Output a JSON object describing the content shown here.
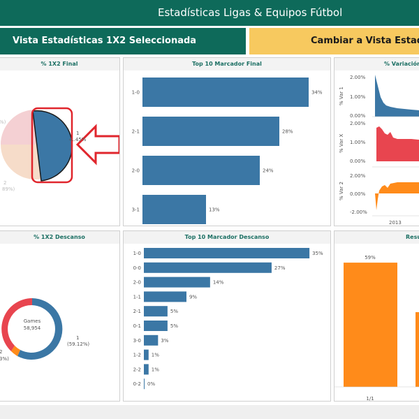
{
  "header": {
    "title": "Estadísticas Ligas & Equipos Fútbol"
  },
  "tabs": {
    "active_label": "Vista Estadísticas 1X2 Seleccionada",
    "switch_label": "Cambiar a Vista Estadísticas"
  },
  "colors": {
    "header_green": "#0e6a5a",
    "switch_yellow": "#f7c95f",
    "bar_blue": "#3b77a5",
    "annotation_red": "#e0262d",
    "red": "#e8454f",
    "orange": "#ff8b1a"
  },
  "panels": {
    "p1x2_final": {
      "title": "% 1X2 Final",
      "label_1": "1",
      "label_1_pct": "4..45%",
      "label_left_pct": "%)",
      "label_2": "2",
      "label_2_pct": "89%)"
    },
    "top10_final": {
      "title": "Top 10 Marcador Final"
    },
    "variacion": {
      "title": "% Variación",
      "axis_year": "2013",
      "row_labels": [
        "% Var 1",
        "% Var X",
        "% Var 2"
      ],
      "ticks_1": [
        "2.00%",
        "1.00%",
        "0.00%"
      ],
      "ticks_x": [
        "2.00%",
        "1.00%",
        "0.00%"
      ],
      "ticks_2": [
        "2.00%",
        "0.00%",
        "-2.00%"
      ]
    },
    "p1x2_descanso": {
      "title": "% 1X2 Descanso",
      "center_label": "Games",
      "center_value": "58,954",
      "label_1": "1",
      "label_1_pct": "(59.12%)",
      "label_2": "2",
      "label_2_pct": "3%)"
    },
    "top10_descanso": {
      "title": "Top 10 Marcador Descanso"
    },
    "resultados": {
      "title": "Resu",
      "bar_label": "59%",
      "axis_label": "1/1"
    }
  },
  "chart_data": [
    {
      "type": "bar",
      "title": "Top 10 Marcador Final",
      "categories": [
        "1-0",
        "2-1",
        "2-0",
        "3-1"
      ],
      "values": [
        34,
        28,
        24,
        13
      ],
      "labels": [
        "34%",
        "28%",
        "24%",
        "13%"
      ],
      "xlim": [
        0,
        40
      ]
    },
    {
      "type": "bar",
      "title": "Top 10 Marcador Descanso",
      "categories": [
        "1-0",
        "0-0",
        "2-0",
        "1-1",
        "2-1",
        "0-1",
        "3-0",
        "1-2",
        "2-2",
        "0-2"
      ],
      "values": [
        35,
        27,
        14,
        9,
        5,
        5,
        3,
        1,
        1,
        0
      ],
      "labels": [
        "35%",
        "27%",
        "14%",
        "9%",
        "5%",
        "5%",
        "3%",
        "1%",
        "1%",
        "0%"
      ],
      "xlim": [
        0,
        40
      ]
    },
    {
      "type": "bar",
      "title": "Resu",
      "categories": [
        "1/1"
      ],
      "values": [
        59
      ],
      "labels": [
        "59%"
      ],
      "ylim": [
        0,
        65
      ]
    }
  ]
}
